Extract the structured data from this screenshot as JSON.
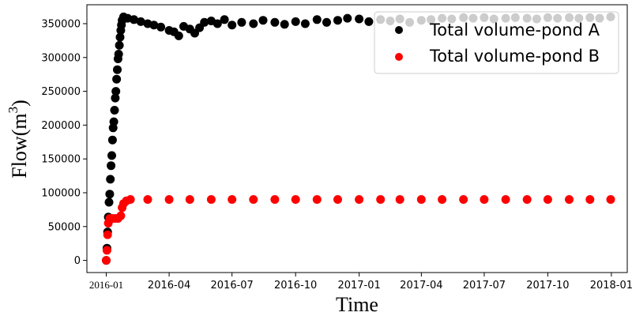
{
  "chart_data": {
    "type": "scatter",
    "title": "",
    "xlabel": "Time",
    "ylabel": "Flow(m",
    "ylabel_superscript": "3",
    "ylabel_close": ")",
    "x_range": [
      "2015-12-04",
      "2018-01-24"
    ],
    "ylim": [
      -18000,
      378000
    ],
    "x_ticks": [
      {
        "date": "2016-01-01",
        "label": "2016-01",
        "serif": true
      },
      {
        "date": "2016-04-01",
        "label": "2016-04"
      },
      {
        "date": "2016-07-01",
        "label": "2016-07"
      },
      {
        "date": "2016-10-01",
        "label": "2016-10"
      },
      {
        "date": "2017-01-01",
        "label": "2017-01"
      },
      {
        "date": "2017-04-01",
        "label": "2017-04"
      },
      {
        "date": "2017-07-01",
        "label": "2017-07"
      },
      {
        "date": "2017-10-01",
        "label": "2017-10"
      },
      {
        "date": "2018-01-01",
        "label": "2018-01"
      }
    ],
    "y_ticks": [
      {
        "value": 0,
        "label": "0"
      },
      {
        "value": 50000,
        "label": "50000"
      },
      {
        "value": 100000,
        "label": "100000"
      },
      {
        "value": 150000,
        "label": "150000"
      },
      {
        "value": 200000,
        "label": "200000"
      },
      {
        "value": 250000,
        "label": "250000"
      },
      {
        "value": 300000,
        "label": "300000"
      },
      {
        "value": 350000,
        "label": "350000"
      }
    ],
    "grid": false,
    "legend_position": "top-right",
    "series": [
      {
        "name": "Total volume-pond A",
        "color": "#000000",
        "points": [
          [
            "2016-01-01",
            0
          ],
          [
            "2016-01-02",
            18000
          ],
          [
            "2016-01-03",
            42000
          ],
          [
            "2016-01-04",
            64000
          ],
          [
            "2016-01-05",
            86000
          ],
          [
            "2016-01-06",
            98000
          ],
          [
            "2016-01-07",
            120000
          ],
          [
            "2016-01-08",
            140000
          ],
          [
            "2016-01-09",
            155000
          ],
          [
            "2016-01-10",
            178000
          ],
          [
            "2016-01-11",
            196000
          ],
          [
            "2016-01-12",
            205000
          ],
          [
            "2016-01-13",
            222000
          ],
          [
            "2016-01-14",
            240000
          ],
          [
            "2016-01-15",
            250000
          ],
          [
            "2016-01-16",
            268000
          ],
          [
            "2016-01-17",
            282000
          ],
          [
            "2016-01-18",
            298000
          ],
          [
            "2016-01-19",
            305000
          ],
          [
            "2016-01-20",
            318000
          ],
          [
            "2016-01-21",
            330000
          ],
          [
            "2016-01-22",
            340000
          ],
          [
            "2016-01-23",
            348000
          ],
          [
            "2016-01-24",
            355000
          ],
          [
            "2016-01-26",
            360000
          ],
          [
            "2016-02-01",
            358000
          ],
          [
            "2016-02-10",
            356000
          ],
          [
            "2016-02-20",
            353000
          ],
          [
            "2016-03-01",
            350000
          ],
          [
            "2016-03-10",
            348000
          ],
          [
            "2016-03-20",
            345000
          ],
          [
            "2016-04-01",
            340000
          ],
          [
            "2016-04-08",
            338000
          ],
          [
            "2016-04-15",
            332000
          ],
          [
            "2016-04-22",
            346000
          ],
          [
            "2016-05-01",
            342000
          ],
          [
            "2016-05-08",
            336000
          ],
          [
            "2016-05-15",
            344000
          ],
          [
            "2016-05-22",
            352000
          ],
          [
            "2016-06-01",
            354000
          ],
          [
            "2016-06-10",
            350000
          ],
          [
            "2016-06-20",
            356000
          ],
          [
            "2016-07-01",
            348000
          ],
          [
            "2016-07-15",
            352000
          ],
          [
            "2016-08-01",
            350000
          ],
          [
            "2016-08-15",
            355000
          ],
          [
            "2016-09-01",
            352000
          ],
          [
            "2016-09-15",
            349000
          ],
          [
            "2016-10-01",
            353000
          ],
          [
            "2016-10-15",
            350000
          ],
          [
            "2016-11-01",
            356000
          ],
          [
            "2016-11-15",
            352000
          ],
          [
            "2016-12-01",
            355000
          ],
          [
            "2016-12-15",
            358000
          ],
          [
            "2017-01-01",
            357000
          ],
          [
            "2017-01-15",
            353000
          ],
          [
            "2017-02-01",
            356000
          ],
          [
            "2017-02-15",
            354000
          ],
          [
            "2017-03-01",
            357000
          ],
          [
            "2017-03-15",
            352000
          ],
          [
            "2017-04-01",
            355000
          ],
          [
            "2017-04-15",
            356000
          ],
          [
            "2017-05-01",
            358000
          ],
          [
            "2017-05-15",
            357000
          ],
          [
            "2017-06-01",
            359000
          ],
          [
            "2017-06-15",
            358000
          ],
          [
            "2017-07-01",
            359000
          ],
          [
            "2017-07-15",
            357000
          ],
          [
            "2017-08-01",
            358000
          ],
          [
            "2017-08-15",
            359000
          ],
          [
            "2017-09-01",
            358000
          ],
          [
            "2017-09-15",
            357000
          ],
          [
            "2017-10-01",
            359000
          ],
          [
            "2017-10-15",
            358000
          ],
          [
            "2017-11-01",
            359000
          ],
          [
            "2017-11-15",
            358000
          ],
          [
            "2017-12-01",
            359000
          ],
          [
            "2017-12-15",
            358000
          ],
          [
            "2017-12-31",
            360000
          ]
        ]
      },
      {
        "name": "Total volume-pond B",
        "color": "#ff0000",
        "points": [
          [
            "2016-01-01",
            0
          ],
          [
            "2016-01-02",
            15000
          ],
          [
            "2016-01-03",
            38000
          ],
          [
            "2016-01-04",
            55000
          ],
          [
            "2016-01-06",
            62000
          ],
          [
            "2016-01-10",
            62000
          ],
          [
            "2016-01-14",
            62000
          ],
          [
            "2016-01-18",
            62000
          ],
          [
            "2016-01-22",
            66000
          ],
          [
            "2016-01-24",
            78000
          ],
          [
            "2016-01-26",
            84000
          ],
          [
            "2016-01-30",
            88000
          ],
          [
            "2016-02-05",
            90000
          ],
          [
            "2016-03-01",
            90000
          ],
          [
            "2016-04-01",
            90000
          ],
          [
            "2016-05-01",
            90000
          ],
          [
            "2016-06-01",
            90000
          ],
          [
            "2016-07-01",
            90000
          ],
          [
            "2016-08-01",
            90000
          ],
          [
            "2016-09-01",
            90000
          ],
          [
            "2016-10-01",
            90000
          ],
          [
            "2016-11-01",
            90000
          ],
          [
            "2016-12-01",
            90000
          ],
          [
            "2017-01-01",
            90000
          ],
          [
            "2017-02-01",
            90000
          ],
          [
            "2017-03-01",
            90000
          ],
          [
            "2017-04-01",
            90000
          ],
          [
            "2017-05-01",
            90000
          ],
          [
            "2017-06-01",
            90000
          ],
          [
            "2017-07-01",
            90000
          ],
          [
            "2017-08-01",
            90000
          ],
          [
            "2017-09-01",
            90000
          ],
          [
            "2017-10-01",
            90000
          ],
          [
            "2017-11-01",
            90000
          ],
          [
            "2017-12-01",
            90000
          ],
          [
            "2017-12-31",
            90000
          ]
        ]
      }
    ]
  }
}
